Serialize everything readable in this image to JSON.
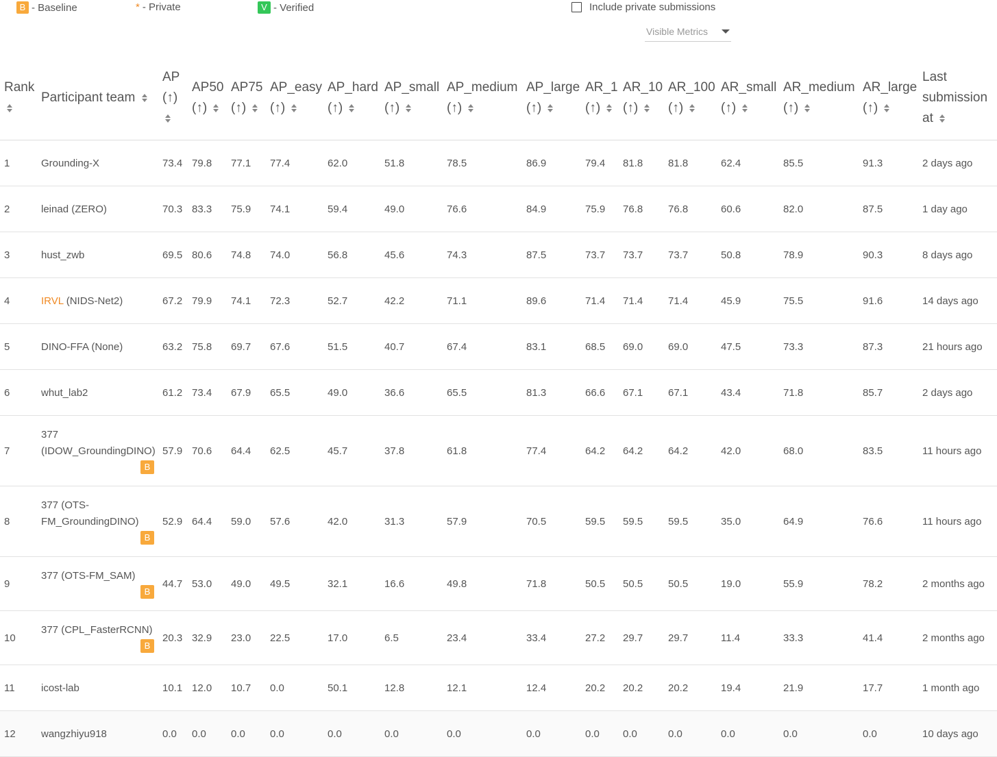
{
  "legend": {
    "baseline_badge": "B",
    "baseline_label": "- Baseline",
    "private_star": "*",
    "private_label": "- Private",
    "verified_badge": "V",
    "verified_label": "- Verified"
  },
  "controls": {
    "include_private_label": "Include private submissions",
    "include_private_checked": false,
    "visible_metrics_label": "Visible Metrics"
  },
  "columns": [
    {
      "key": "rank",
      "label": "Rank",
      "arrow": ""
    },
    {
      "key": "team",
      "label": "Participant team",
      "arrow": ""
    },
    {
      "key": "ap",
      "label": "AP",
      "arrow": "(↑)"
    },
    {
      "key": "ap50",
      "label": "AP50",
      "arrow": "(↑)"
    },
    {
      "key": "ap75",
      "label": "AP75",
      "arrow": "(↑)"
    },
    {
      "key": "ap_easy",
      "label": "AP_easy",
      "arrow": "(↑)"
    },
    {
      "key": "ap_hard",
      "label": "AP_hard",
      "arrow": "(↑)"
    },
    {
      "key": "ap_small",
      "label": "AP_small",
      "arrow": "(↑)"
    },
    {
      "key": "ap_medium",
      "label": "AP_medium",
      "arrow": "(↑)"
    },
    {
      "key": "ap_large",
      "label": "AP_large",
      "arrow": "(↑)"
    },
    {
      "key": "ar_1",
      "label": "AR_1",
      "arrow": "(↑)"
    },
    {
      "key": "ar_10",
      "label": "AR_10",
      "arrow": "(↑)"
    },
    {
      "key": "ar_100",
      "label": "AR_100",
      "arrow": "(↑)"
    },
    {
      "key": "ar_small",
      "label": "AR_small",
      "arrow": "(↑)"
    },
    {
      "key": "ar_medium",
      "label": "AR_medium",
      "arrow": "(↑)"
    },
    {
      "key": "ar_large",
      "label": "AR_large",
      "arrow": "(↑)"
    },
    {
      "key": "last",
      "label": "Last submission at",
      "arrow": ""
    }
  ],
  "rows": [
    {
      "rank": "1",
      "team": "Grounding-X",
      "team_link": "",
      "baseline": false,
      "values": [
        "73.4",
        "79.8",
        "77.1",
        "77.4",
        "62.0",
        "51.8",
        "78.5",
        "86.9",
        "79.4",
        "81.8",
        "81.8",
        "62.4",
        "85.5",
        "91.3"
      ],
      "last": "2 days ago"
    },
    {
      "rank": "2",
      "team": "leinad (ZERO)",
      "team_link": "",
      "baseline": false,
      "values": [
        "70.3",
        "83.3",
        "75.9",
        "74.1",
        "59.4",
        "49.0",
        "76.6",
        "84.9",
        "75.9",
        "76.8",
        "76.8",
        "60.6",
        "82.0",
        "87.5"
      ],
      "last": "1 day ago"
    },
    {
      "rank": "3",
      "team": "hust_zwb",
      "team_link": "",
      "baseline": false,
      "values": [
        "69.5",
        "80.6",
        "74.8",
        "74.0",
        "56.8",
        "45.6",
        "74.3",
        "87.5",
        "73.7",
        "73.7",
        "73.7",
        "50.8",
        "78.9",
        "90.3"
      ],
      "last": "8 days ago"
    },
    {
      "rank": "4",
      "team": " (NIDS-Net2)",
      "team_link": "IRVL",
      "baseline": false,
      "values": [
        "67.2",
        "79.9",
        "74.1",
        "72.3",
        "52.7",
        "42.2",
        "71.1",
        "89.6",
        "71.4",
        "71.4",
        "71.4",
        "45.9",
        "75.5",
        "91.6"
      ],
      "last": "14 days ago"
    },
    {
      "rank": "5",
      "team": "DINO-FFA (None)",
      "team_link": "",
      "baseline": false,
      "values": [
        "63.2",
        "75.8",
        "69.7",
        "67.6",
        "51.5",
        "40.7",
        "67.4",
        "83.1",
        "68.5",
        "69.0",
        "69.0",
        "47.5",
        "73.3",
        "87.3"
      ],
      "last": "21 hours ago"
    },
    {
      "rank": "6",
      "team": "whut_lab2",
      "team_link": "",
      "baseline": false,
      "values": [
        "61.2",
        "73.4",
        "67.9",
        "65.5",
        "49.0",
        "36.6",
        "65.5",
        "81.3",
        "66.6",
        "67.1",
        "67.1",
        "43.4",
        "71.8",
        "85.7"
      ],
      "last": "2 days ago"
    },
    {
      "rank": "7",
      "team": "377 (IDOW_GroundingDINO)",
      "team_link": "",
      "baseline": true,
      "values": [
        "57.9",
        "70.6",
        "64.4",
        "62.5",
        "45.7",
        "37.8",
        "61.8",
        "77.4",
        "64.2",
        "64.2",
        "64.2",
        "42.0",
        "68.0",
        "83.5"
      ],
      "last": "11 hours ago"
    },
    {
      "rank": "8",
      "team": "377 (OTS-FM_GroundingDINO)",
      "team_link": "",
      "baseline": true,
      "values": [
        "52.9",
        "64.4",
        "59.0",
        "57.6",
        "42.0",
        "31.3",
        "57.9",
        "70.5",
        "59.5",
        "59.5",
        "59.5",
        "35.0",
        "64.9",
        "76.6"
      ],
      "last": "11 hours ago"
    },
    {
      "rank": "9",
      "team": "377 (OTS-FM_SAM)",
      "team_link": "",
      "baseline": true,
      "values": [
        "44.7",
        "53.0",
        "49.0",
        "49.5",
        "32.1",
        "16.6",
        "49.8",
        "71.8",
        "50.5",
        "50.5",
        "50.5",
        "19.0",
        "55.9",
        "78.2"
      ],
      "last": "2 months ago"
    },
    {
      "rank": "10",
      "team": "377 (CPL_FasterRCNN)",
      "team_link": "",
      "baseline": true,
      "values": [
        "20.3",
        "32.9",
        "23.0",
        "22.5",
        "17.0",
        "6.5",
        "23.4",
        "33.4",
        "27.2",
        "29.7",
        "29.7",
        "11.4",
        "33.3",
        "41.4"
      ],
      "last": "2 months ago"
    },
    {
      "rank": "11",
      "team": "icost-lab",
      "team_link": "",
      "baseline": false,
      "values": [
        "10.1",
        "12.0",
        "10.7",
        "0.0",
        "50.1",
        "12.8",
        "12.1",
        "12.4",
        "20.2",
        "20.2",
        "20.2",
        "19.4",
        "21.9",
        "17.7"
      ],
      "last": "1 month ago"
    },
    {
      "rank": "12",
      "team": "wangzhiyu918",
      "team_link": "",
      "baseline": false,
      "values": [
        "0.0",
        "0.0",
        "0.0",
        "0.0",
        "0.0",
        "0.0",
        "0.0",
        "0.0",
        "0.0",
        "0.0",
        "0.0",
        "0.0",
        "0.0",
        "0.0"
      ],
      "last": "10 days ago"
    }
  ],
  "colors": {
    "baseline_badge": "#f8a93c",
    "verified_badge": "#34c759",
    "private_star": "#f08a24",
    "link": "#f08a24"
  }
}
